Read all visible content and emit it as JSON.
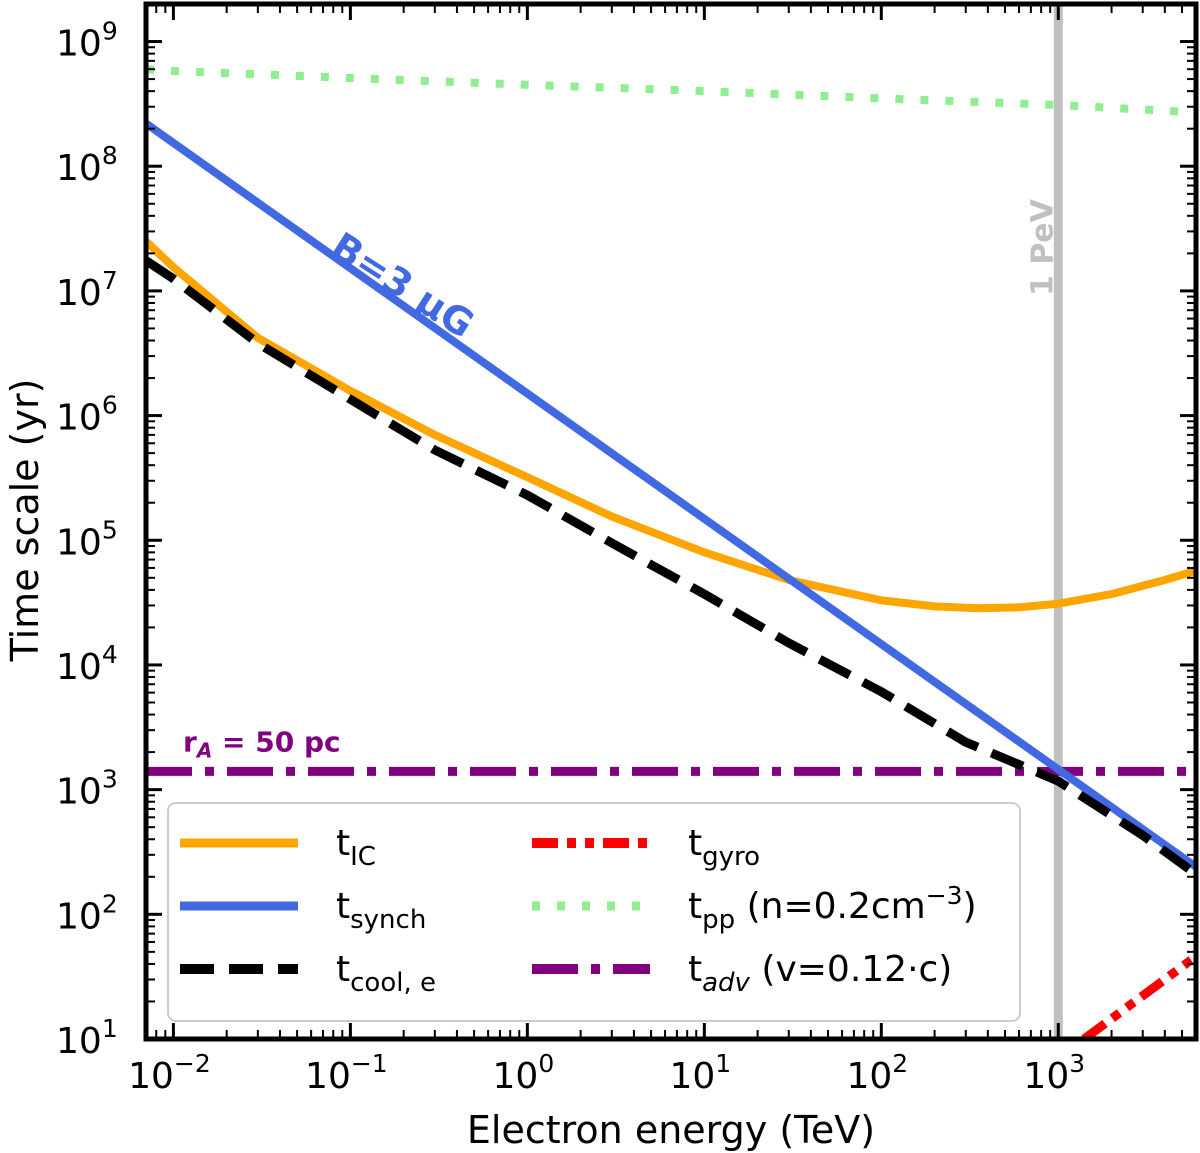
{
  "chart_data": {
    "type": "line",
    "title": "",
    "xlabel": "Electron energy (TeV)",
    "ylabel": "Time scale (yr)",
    "xscale": "log",
    "yscale": "log",
    "xlim": [
      0.007,
      6000
    ],
    "ylim": [
      10,
      2000000000
    ],
    "x_ticks": [
      {
        "base": "10",
        "exp": "−2"
      },
      {
        "base": "10",
        "exp": "−1"
      },
      {
        "base": "10",
        "exp": "0"
      },
      {
        "base": "10",
        "exp": "1"
      },
      {
        "base": "10",
        "exp": "2"
      },
      {
        "base": "10",
        "exp": "3"
      }
    ],
    "y_ticks": [
      {
        "base": "10",
        "exp": "1"
      },
      {
        "base": "10",
        "exp": "2"
      },
      {
        "base": "10",
        "exp": "3"
      },
      {
        "base": "10",
        "exp": "4"
      },
      {
        "base": "10",
        "exp": "5"
      },
      {
        "base": "10",
        "exp": "6"
      },
      {
        "base": "10",
        "exp": "7"
      },
      {
        "base": "10",
        "exp": "8"
      },
      {
        "base": "10",
        "exp": "9"
      }
    ],
    "x_tick_values": [
      0.01,
      0.1,
      1,
      10,
      100,
      1000
    ],
    "y_tick_values": [
      10,
      100,
      1000,
      10000,
      100000,
      1000000,
      10000000,
      100000000,
      1000000000
    ],
    "series": [
      {
        "name": "tIC",
        "label_main": "t",
        "label_sub": "IC",
        "label_rest": "",
        "color": "#FFA500",
        "style": "solid",
        "x": [
          0.007,
          0.01,
          0.03,
          0.1,
          0.3,
          1,
          3,
          10,
          30,
          100,
          200,
          350,
          600,
          1000,
          2000,
          4000,
          6000
        ],
        "y": [
          25000000,
          15500000,
          4200000,
          1580000,
          700000,
          320000,
          155000,
          80000,
          48000,
          33000,
          29500,
          28500,
          29000,
          31000,
          37000,
          48000,
          57000
        ]
      },
      {
        "name": "tsynch",
        "label_main": "t",
        "label_sub": "synch",
        "label_rest": "",
        "color": "#4169E1",
        "style": "solid",
        "x": [
          0.007,
          6000
        ],
        "y": [
          220000000,
          240
        ]
      },
      {
        "name": "tcool,e",
        "label_main": "t",
        "label_sub": "cool, e",
        "label_rest": "",
        "color": "#000000",
        "style": "dashed",
        "x": [
          0.007,
          0.01,
          0.03,
          0.1,
          0.3,
          1,
          3,
          10,
          30,
          100,
          300,
          1000,
          3000,
          6000
        ],
        "y": [
          17500000,
          12500000,
          3800000,
          1350000,
          530000,
          230000,
          95000,
          37000,
          15000,
          6100,
          2400,
          1170,
          430,
          210
        ]
      },
      {
        "name": "tgyro",
        "label_main": "t",
        "label_sub": "gyro",
        "label_rest": "",
        "color": "#FF0000",
        "style": "dashdotdot",
        "x": [
          1400,
          6000
        ],
        "y": [
          10,
          46
        ]
      },
      {
        "name": "tpp",
        "label_main": "t",
        "label_sub": "pp",
        "label_rest": " (n=0.2cm",
        "label_sup": "−3",
        "label_tail": ")",
        "color": "#90EE90",
        "style": "dotted",
        "x": [
          0.007,
          0.01,
          0.1,
          1,
          10,
          100,
          1000,
          6000
        ],
        "y": [
          600000000,
          580000000,
          510000000,
          450000000,
          400000000,
          350000000,
          310000000,
          270000000
        ]
      },
      {
        "name": "tadv",
        "label_main": "t",
        "label_sub": "adv",
        "label_rest": " (v=0.12·c)",
        "color": "#800080",
        "style": "dashdot",
        "x": [
          0.007,
          6000
        ],
        "y": [
          1400,
          1400
        ]
      }
    ],
    "vline": {
      "x": 1000,
      "label": "1 PeV",
      "color": "#C0C0C0"
    },
    "annotations": {
      "b_field": "B=3 μG",
      "ra_main": "r",
      "ra_sub": "A",
      "ra_rest": " = 50 pc"
    },
    "legend_position": "lower-left"
  }
}
